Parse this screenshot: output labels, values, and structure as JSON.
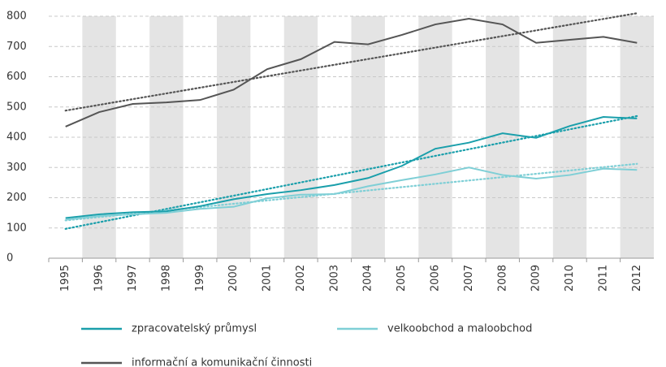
{
  "chart_data": {
    "type": "line",
    "categories": [
      "1995",
      "1996",
      "1997",
      "1998",
      "1999",
      "2000",
      "2001",
      "2002",
      "2003",
      "2004",
      "2005",
      "2006",
      "2007",
      "2008",
      "2009",
      "2010",
      "2011",
      "2012"
    ],
    "series": [
      {
        "name": "zpracovatelský průmysl",
        "color": "#1a9fab",
        "values": [
          133,
          145,
          152,
          155,
          172,
          195,
          212,
          225,
          242,
          265,
          305,
          362,
          382,
          413,
          398,
          437,
          467,
          462
        ],
        "trend": [
          97,
          470
        ]
      },
      {
        "name": "velkoobchod a maloobchod",
        "color": "#7fcfd6",
        "values": [
          128,
          140,
          145,
          150,
          163,
          170,
          198,
          210,
          212,
          238,
          258,
          277,
          300,
          275,
          263,
          275,
          296,
          292
        ],
        "trend": [
          125,
          312
        ]
      },
      {
        "name": "informační a komunikační činnosti",
        "color": "#555555",
        "values": [
          435,
          483,
          510,
          515,
          523,
          557,
          625,
          658,
          715,
          707,
          738,
          773,
          792,
          773,
          712,
          722,
          732,
          712
        ],
        "trend": [
          488,
          810
        ]
      }
    ],
    "ylim": [
      0,
      800
    ],
    "yticks": [
      0,
      100,
      200,
      300,
      400,
      500,
      600,
      700,
      800
    ],
    "grid": true
  }
}
